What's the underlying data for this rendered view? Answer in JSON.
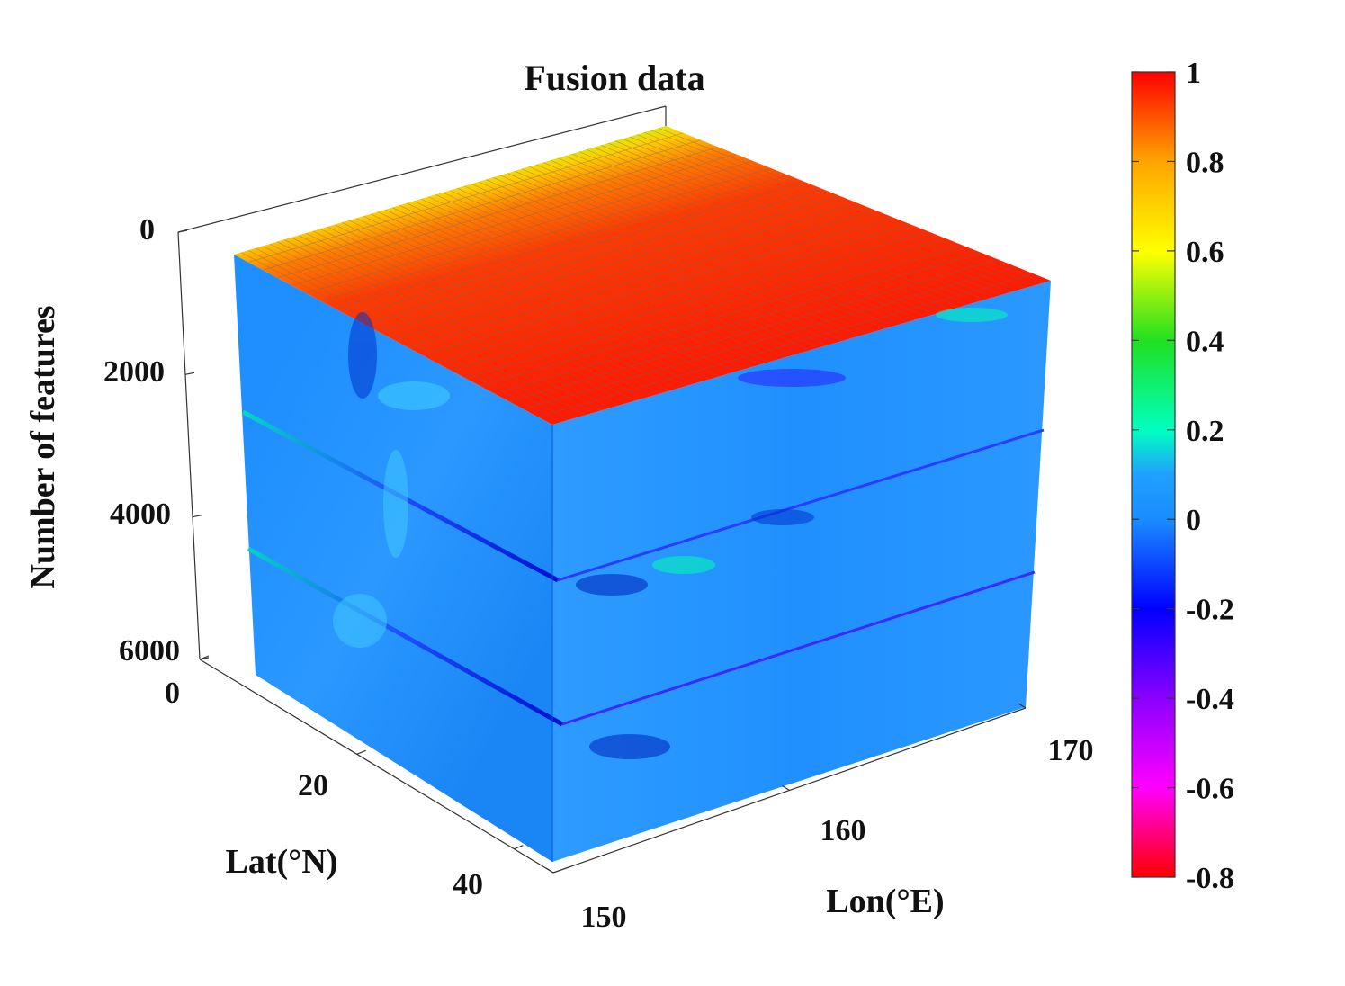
{
  "chart_data": {
    "type": "heatmap",
    "title": "Fusion data",
    "xlabel": "Lon(°E)",
    "ylabel": "Lat(°N)",
    "zlabel": "Number of features",
    "x_ticks": [
      "150",
      "160",
      "170"
    ],
    "x_tick_values": [
      150,
      160,
      170
    ],
    "y_ticks": [
      "0",
      "20",
      "40"
    ],
    "y_tick_values": [
      0,
      20,
      40
    ],
    "z_ticks": [
      "0",
      "2000",
      "4000",
      "6000"
    ],
    "z_tick_values": [
      0,
      2000,
      4000,
      6000
    ],
    "xlim": [
      150,
      170
    ],
    "ylim": [
      0,
      45
    ],
    "zlim": [
      0,
      6000
    ],
    "z_reversed": true,
    "slices_at_features": [
      2000,
      4000
    ],
    "colorbar": {
      "ticks": [
        "1",
        "0.8",
        "0.6",
        "0.4",
        "0.2",
        "0",
        "-0.2",
        "-0.4",
        "-0.6",
        "-0.8"
      ],
      "tick_values": [
        1,
        0.8,
        0.6,
        0.4,
        0.2,
        0,
        -0.2,
        -0.4,
        -0.6,
        -0.8
      ],
      "range": [
        -0.8,
        1
      ],
      "colors": [
        "#ff0000",
        "#ff5a00",
        "#ffa500",
        "#ffff00",
        "#20e020",
        "#00ffc0",
        "#1a8cff",
        "#0000ff",
        "#8a00ff",
        "#ff00ff",
        "#ff0000"
      ]
    },
    "top_face_values": "≈0.9–1.0 with gradient to ≈0.6 at high latitude",
    "side_face_values": "≈0 to −0.2"
  }
}
